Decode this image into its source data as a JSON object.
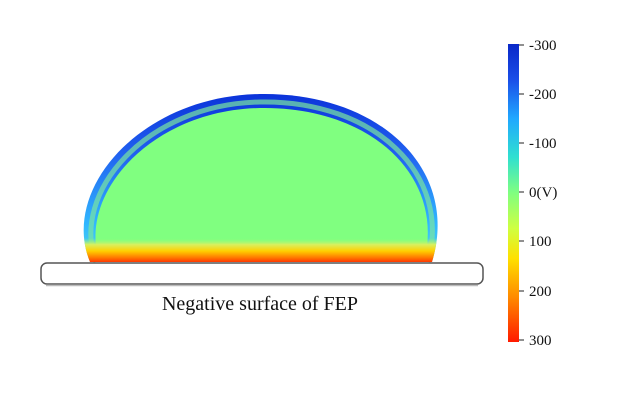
{
  "caption": "Negative surface of FEP",
  "colorbar": {
    "tick_labels": [
      "-300",
      "-200",
      "-100",
      "0(V)",
      "100",
      "200",
      "300"
    ],
    "range": [
      -300,
      300
    ],
    "colors": {
      "low": "#ff1a00",
      "mid_low": "#ffd000",
      "mid": "#80ff80",
      "mid_high": "#00c8ff",
      "high": "#0a30d8"
    }
  },
  "droplet": {
    "bulk_potential_label": "0(V)",
    "bulk_color": "#80ff80",
    "top_edge_color": "#0a30d8",
    "bottom_edge_color": "#ff2000"
  },
  "substrate": {
    "fill": "#ffffff",
    "stroke": "#555555"
  }
}
